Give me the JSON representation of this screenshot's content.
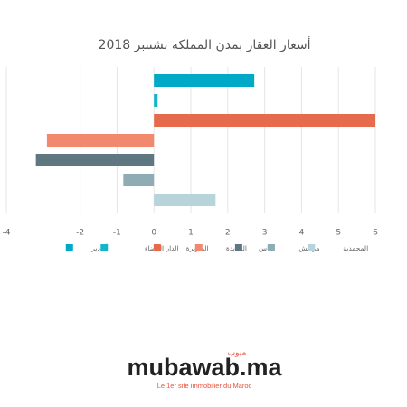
{
  "chart_data": {
    "type": "bar",
    "orientation": "horizontal",
    "title": "أسعار العقار بمدن المملكة بشتنبر 2018",
    "categories": [
      "أكادير",
      "الدار البيضاء",
      "الصويرة",
      "الجديدة",
      "فاس",
      "مراكش",
      "المحمدية"
    ],
    "values": [
      2.72,
      0.1,
      6.0,
      -2.9,
      -3.2,
      -0.83,
      1.67
    ],
    "colors": [
      "#00a9c7",
      "#14b5c9",
      "#e66a4c",
      "#f2886d",
      "#5f7780",
      "#8fabb3",
      "#b6d4da"
    ],
    "xlim": [
      -4,
      6
    ],
    "xticks": [
      -4,
      -2,
      -1,
      0,
      1,
      2,
      3,
      4,
      5,
      6
    ],
    "grid": true,
    "legend": "bottom"
  },
  "branding": {
    "logo": "mubawab.ma",
    "logo_arabic": "مبوب",
    "tagline": "Le 1er site immobilier du Maroc"
  }
}
